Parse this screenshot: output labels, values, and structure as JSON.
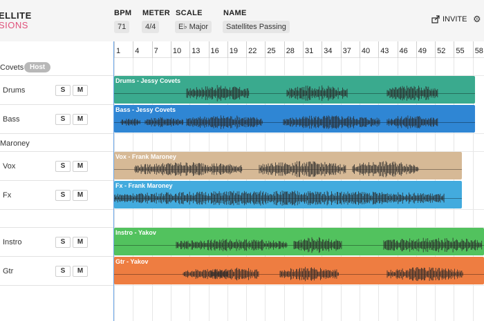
{
  "header": {
    "logo_line1": "ELLITE",
    "logo_line2": "SIONS",
    "bpm_label": "BPM",
    "bpm_value": "71",
    "meter_label": "METER",
    "meter_value": "4/4",
    "scale_label": "SCALE",
    "scale_value": "E♭ Major",
    "name_label": "NAME",
    "name_value": "Satellites Passing",
    "invite_label": "INVITE"
  },
  "groups": [
    {
      "name": "Covets",
      "badge": "Host"
    },
    {
      "name": "Maroney"
    },
    {
      "name": ""
    }
  ],
  "tracks": [
    {
      "name": "Drums",
      "solo": "S",
      "mute": "M",
      "region": "Drums - Jessy Covets",
      "color": "#3aaa8e"
    },
    {
      "name": "Bass",
      "solo": "S",
      "mute": "M",
      "region": "Bass - Jessy Covets",
      "color": "#2f86d4"
    },
    {
      "name": "Vox",
      "solo": "S",
      "mute": "M",
      "region": "Vox - Frank Maroney",
      "color": "#d6b996"
    },
    {
      "name": "Fx",
      "solo": "S",
      "mute": "M",
      "region": "Fx - Frank Maroney",
      "color": "#43abde"
    },
    {
      "name": "Instro",
      "solo": "S",
      "mute": "M",
      "region": "Instro - Yakov",
      "color": "#52c25e"
    },
    {
      "name": "Gtr",
      "solo": "S",
      "mute": "M",
      "region": "Gtr - Yakov",
      "color": "#ee7d41"
    }
  ],
  "ruler": [
    "1",
    "4",
    "7",
    "10",
    "13",
    "16",
    "19",
    "22",
    "25",
    "28",
    "31",
    "34",
    "37",
    "40",
    "43",
    "46",
    "49",
    "52",
    "55",
    "58"
  ]
}
